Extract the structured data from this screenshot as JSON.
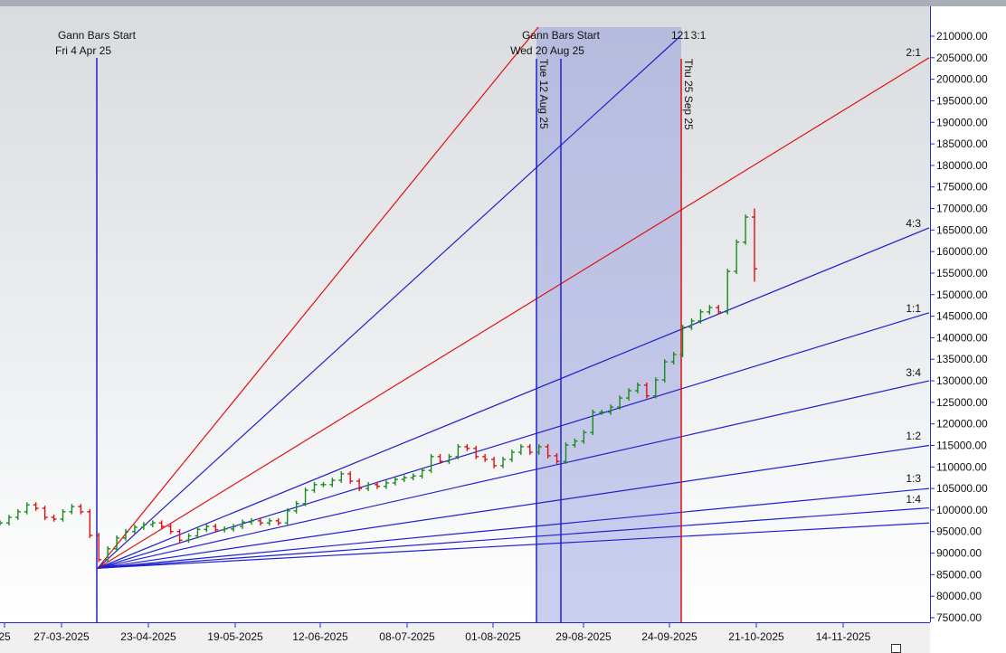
{
  "chart_data": {
    "type": "ohlc-bar",
    "ylim": [
      75000,
      210000
    ],
    "y_ticks": [
      "75000.00",
      "80000.00",
      "85000.00",
      "90000.00",
      "95000.00",
      "100000.00",
      "105000.00",
      "110000.00",
      "115000.00",
      "120000.00",
      "125000.00",
      "130000.00",
      "135000.00",
      "140000.00",
      "145000.00",
      "150000.00",
      "155000.00",
      "160000.00",
      "165000.00",
      "170000.00",
      "175000.00",
      "180000.00",
      "185000.00",
      "190000.00",
      "195000.00",
      "200000.00",
      "205000.00",
      "210000.00"
    ],
    "x_ticks": [
      "25",
      "27-03-2025",
      "23-04-2025",
      "19-05-2025",
      "12-06-2025",
      "08-07-2025",
      "01-08-2025",
      "29-08-2025",
      "24-09-2025",
      "21-10-2025",
      "14-11-2025"
    ],
    "closes": [
      97000,
      98300,
      99600,
      101200,
      100400,
      98300,
      97900,
      99600,
      100800,
      99600,
      94100,
      88500,
      91000,
      93500,
      95000,
      96000,
      96600,
      97000,
      96200,
      95000,
      93000,
      94000,
      95500,
      96200,
      95400,
      95600,
      96200,
      97200,
      97500,
      97000,
      97500,
      97000,
      99800,
      101500,
      104600,
      105900,
      105900,
      106900,
      108400,
      106700,
      105000,
      105900,
      105500,
      106300,
      107100,
      107500,
      107900,
      109200,
      112400,
      111300,
      112400,
      114700,
      114300,
      112400,
      111750,
      110300,
      111750,
      113400,
      114700,
      113400,
      114700,
      112600,
      111300,
      115100,
      116000,
      118000,
      122700,
      122700,
      123900,
      126000,
      127700,
      129000,
      126500,
      130200,
      134400,
      136100,
      142400,
      143900,
      146000,
      147000,
      146000,
      155400,
      162200,
      168000,
      156000
    ],
    "last_bar_range": [
      153000,
      170000
    ],
    "up_color": "#1a8a1a",
    "down_color": "#e01010",
    "vertical_markers": [
      {
        "label1": "Gann Bars Start",
        "label2": "Fri 4 Apr 25",
        "color": "#2020d0"
      },
      {
        "label1": "Tue 12 Aug 25",
        "color": "#2020d0"
      },
      {
        "label1": "Gann Bars Start",
        "label2": "Wed 20 Aug 25",
        "color": "#2020d0"
      },
      {
        "label1": "Thu 25 Sep 25",
        "color": "#e01010"
      }
    ],
    "shaded_region_color": "#8c94dc",
    "gann_fan": {
      "origin_price": 86500,
      "lines": [
        {
          "ratio": "4:1",
          "color": "#e01010",
          "label": ""
        },
        {
          "ratio": "3:1",
          "color": "#2020d0",
          "label": "3:1"
        },
        {
          "ratio": "2:1",
          "color": "#e01010",
          "label": "2:1",
          "end_price": 205000
        },
        {
          "ratio": "4:3",
          "color": "#2020d0",
          "label": "4:3",
          "end_price": 165500
        },
        {
          "ratio": "1:1",
          "color": "#2020d0",
          "label": "1:1",
          "end_price": 145800
        },
        {
          "ratio": "3:4",
          "color": "#2020d0",
          "label": "3:4",
          "end_price": 130000
        },
        {
          "ratio": "1:2",
          "color": "#2020d0",
          "label": "1:2",
          "end_price": 115000
        },
        {
          "ratio": "1:3",
          "color": "#2020d0",
          "label": "1:3",
          "end_price": 105000
        },
        {
          "ratio": "1:4",
          "color": "#2020d0",
          "label": "1:4",
          "end_price": 100500
        },
        {
          "ratio": "1:8",
          "color": "#2020d0",
          "label": "",
          "end_price": 97000
        }
      ],
      "extra_label": "121"
    }
  }
}
